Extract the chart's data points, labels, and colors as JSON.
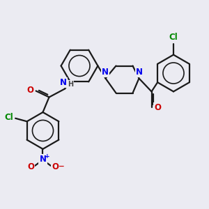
{
  "bg_color": "#ebebf2",
  "bond_color": "#1a1a1a",
  "bond_lw": 1.6,
  "atom_colors": {
    "N": "#0000ee",
    "O": "#cc0000",
    "Cl": "#008800",
    "H": "#444444"
  },
  "font_size": 8.5,
  "fig_w": 3.0,
  "fig_h": 3.0,
  "dpi": 100
}
